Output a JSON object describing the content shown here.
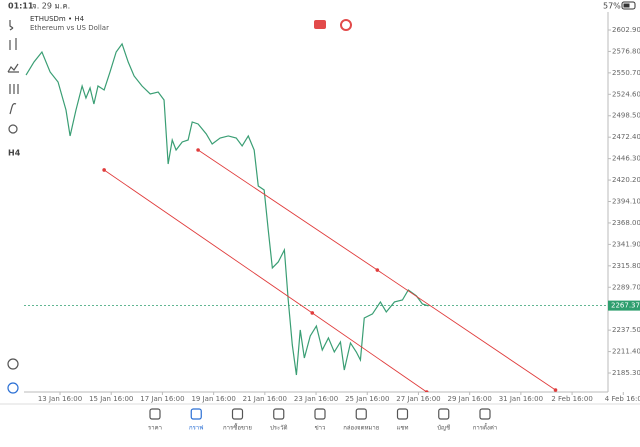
{
  "status_bar": {
    "time": "01:11",
    "date": "จ. 29 ม.ค.",
    "battery": "57%"
  },
  "toolbar": {
    "timeframe": "H4"
  },
  "chart_data": {
    "type": "line",
    "title": "ETHUSDm • H4",
    "subtitle": "Ethereum vs US Dollar",
    "color": "#3a9e74",
    "x": [
      12.34,
      12.65,
      12.96,
      13.28,
      13.59,
      13.9,
      14.06,
      14.29,
      14.53,
      14.68,
      14.84,
      14.99,
      15.15,
      15.39,
      15.62,
      15.86,
      16.09,
      16.33,
      16.56,
      16.87,
      17.19,
      17.5,
      17.73,
      17.89,
      18.05,
      18.2,
      18.44,
      18.67,
      18.83,
      19.06,
      19.38,
      19.61,
      19.92,
      20.24,
      20.55,
      20.78,
      21.02,
      21.25,
      21.41,
      21.64,
      21.8,
      21.96,
      22.19,
      22.43,
      22.58,
      22.74,
      22.9,
      23.05,
      23.21,
      23.44,
      23.68,
      23.91,
      24.15,
      24.38,
      24.62,
      24.77,
      25.01,
      25.24,
      25.4,
      25.55,
      25.87,
      26.18,
      26.41,
      26.73,
      27.04,
      27.27,
      27.59,
      27.82,
      28.06
    ],
    "values": [
      2548.1,
      2564.0,
      2576.1,
      2551.8,
      2539.6,
      2505.5,
      2473.9,
      2505.5,
      2534.7,
      2520.1,
      2532.3,
      2512.8,
      2534.7,
      2529.9,
      2551.8,
      2576.1,
      2585.9,
      2563.9,
      2546.9,
      2534.7,
      2525.0,
      2527.4,
      2517.7,
      2439.8,
      2469.0,
      2456.8,
      2466.6,
      2469.0,
      2490.9,
      2488.5,
      2476.3,
      2464.1,
      2471.4,
      2473.9,
      2471.4,
      2461.7,
      2473.9,
      2456.8,
      2413.0,
      2408.1,
      2359.4,
      2313.2,
      2320.5,
      2335.1,
      2274.2,
      2219.4,
      2182.9,
      2237.7,
      2203.6,
      2230.4,
      2242.5,
      2213.3,
      2228.0,
      2210.9,
      2223.1,
      2189.0,
      2221.9,
      2210.9,
      2201.2,
      2252.3,
      2257.2,
      2271.8,
      2259.6,
      2271.8,
      2274.2,
      2286.4,
      2279.1,
      2269.4,
      2267.0
    ],
    "trendlines": [
      {
        "color": "#e03c3c",
        "x": [
          15.39,
          23.52,
          27.99
        ],
        "values": [
          2432.5,
          2258.4,
          2162.2
        ]
      },
      {
        "color": "#e03c3c",
        "x": [
          19.06,
          26.06,
          33.02
        ],
        "values": [
          2456.8,
          2310.7,
          2164.6
        ]
      }
    ],
    "current_price": 2267.37,
    "current_price_color": "#2e9e6e",
    "xlim": [
      12.26,
      35.07
    ],
    "ylim": [
      2162.2,
      2624.8
    ],
    "grid": false,
    "xticks": [
      {
        "value": 13.667,
        "label": "13 Jan 16:00"
      },
      {
        "value": 15.667,
        "label": "15 Jan 16:00"
      },
      {
        "value": 17.667,
        "label": "17 Jan 16:00"
      },
      {
        "value": 19.667,
        "label": "19 Jan 16:00"
      },
      {
        "value": 21.667,
        "label": "21 Jan 16:00"
      },
      {
        "value": 23.667,
        "label": "23 Jan 16:00"
      },
      {
        "value": 25.667,
        "label": "25 Jan 16:00"
      },
      {
        "value": 27.667,
        "label": "27 Jan 16:00"
      },
      {
        "value": 29.667,
        "label": "29 Jan 16:00"
      },
      {
        "value": 31.667,
        "label": "31 Jan 16:00"
      },
      {
        "value": 33.667,
        "label": "2 Feb 16:00"
      },
      {
        "value": 35.667,
        "label": "4 Feb 16:0"
      }
    ],
    "yticks": [
      {
        "value": 2602.9,
        "label": "2602.90"
      },
      {
        "value": 2576.8,
        "label": "2576.80"
      },
      {
        "value": 2550.7,
        "label": "2550.70"
      },
      {
        "value": 2524.6,
        "label": "2524.60"
      },
      {
        "value": 2498.5,
        "label": "2498.50"
      },
      {
        "value": 2472.4,
        "label": "2472.40"
      },
      {
        "value": 2446.3,
        "label": "2446.30"
      },
      {
        "value": 2420.2,
        "label": "2420.20"
      },
      {
        "value": 2394.1,
        "label": "2394.10"
      },
      {
        "value": 2368.0,
        "label": "2368.00"
      },
      {
        "value": 2341.9,
        "label": "2341.90"
      },
      {
        "value": 2315.8,
        "label": "2315.80"
      },
      {
        "value": 2289.7,
        "label": "2289.70"
      },
      {
        "value": 2237.5,
        "label": "2237.50"
      },
      {
        "value": 2211.4,
        "label": "2211.40"
      },
      {
        "value": 2185.3,
        "label": "2185.30"
      }
    ]
  },
  "nav": {
    "active": 1,
    "items": [
      "ราคา",
      "กราฟ",
      "การซื้อขาย",
      "ประวัติ",
      "ข่าว",
      "กล่องจดหมาย",
      "แชท",
      "บัญชี",
      "การตั้งค่า"
    ]
  }
}
